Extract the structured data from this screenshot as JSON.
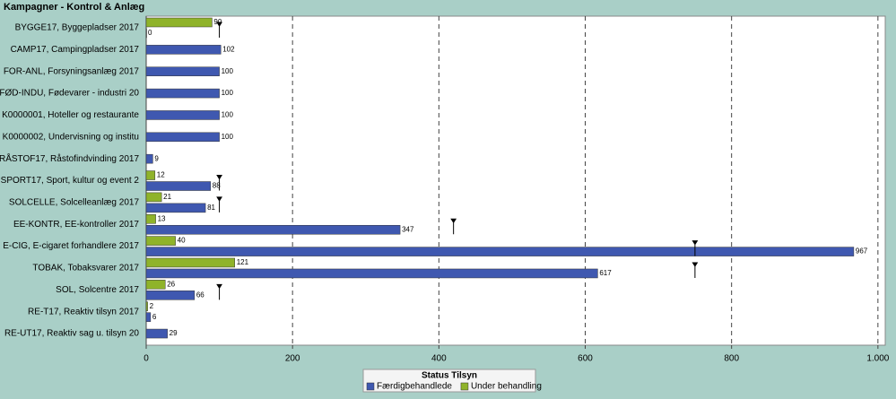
{
  "chart_data": {
    "type": "hbar",
    "title": "Kampagner - Kontrol & Anlæg",
    "categories": [
      "BYGGE17, Byggepladser 2017",
      "CAMP17, Campingpladser 2017",
      "FOR-ANL, Forsyningsanlæg 2017",
      "FØD-INDU, Fødevarer - industri 20",
      "K0000001, Hoteller og restaurante",
      "K0000002, Undervisning og institu",
      "RÅSTOF17, Råstofindvinding 2017",
      "SPORT17, Sport, kultur og event 2",
      "SOLCELLE, Solcelleanlæg 2017",
      "EE-KONTR, EE-kontroller 2017",
      "E-CIG, E-cigaret forhandlere 2017",
      "TOBAK, Tobaksvarer 2017",
      "SOL, Solcentre 2017",
      "RE-T17, Reaktiv tilsyn 2017",
      "RE-UT17, Reaktiv sag u. tilsyn 20"
    ],
    "series": [
      {
        "name": "Færdigbehandlede",
        "color": "#3f58b0",
        "values": [
          0,
          102,
          100,
          100,
          100,
          100,
          9,
          88,
          81,
          347,
          967,
          617,
          66,
          6,
          29
        ]
      },
      {
        "name": "Under behandling",
        "color": "#8fb32a",
        "values": [
          90,
          null,
          null,
          null,
          null,
          null,
          null,
          12,
          21,
          13,
          40,
          121,
          26,
          2,
          null
        ]
      }
    ],
    "targets": [
      100,
      null,
      null,
      null,
      null,
      null,
      null,
      100,
      100,
      420,
      750,
      750,
      100,
      null,
      null
    ],
    "xlim": [
      0,
      1010
    ],
    "xticks": [
      0,
      200,
      400,
      600,
      800,
      {
        "value": 1000,
        "label": "1.000"
      }
    ],
    "grid": true,
    "legend_title": "Status Tilsyn"
  }
}
